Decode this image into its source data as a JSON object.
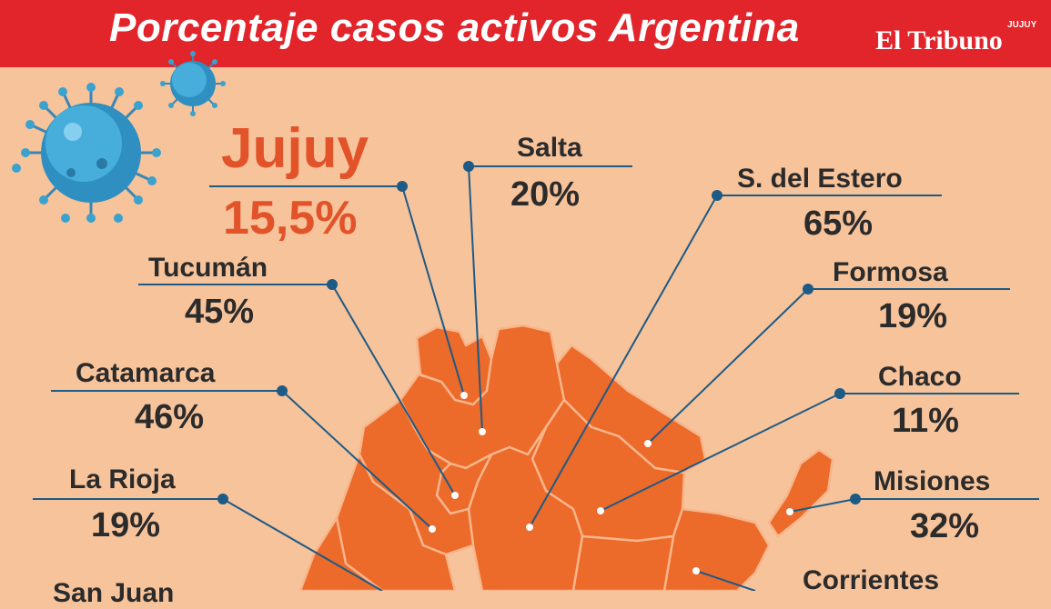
{
  "header": {
    "title": "Porcentaje casos activos Argentina",
    "logo": "El Tribuno",
    "logo_sub": "JUJUY"
  },
  "provinces": [
    {
      "key": "jujuy",
      "name": "Jujuy",
      "value": "15,5%"
    },
    {
      "key": "salta",
      "name": "Salta",
      "value": "20%"
    },
    {
      "key": "sde",
      "name": "S. del Estero",
      "value": "65%"
    },
    {
      "key": "tucuman",
      "name": "Tucumán",
      "value": "45%"
    },
    {
      "key": "formosa",
      "name": "Formosa",
      "value": "19%"
    },
    {
      "key": "catamarca",
      "name": "Catamarca",
      "value": "46%"
    },
    {
      "key": "chaco",
      "name": "Chaco",
      "value": "11%"
    },
    {
      "key": "larioja",
      "name": "La Rioja",
      "value": "19%"
    },
    {
      "key": "misiones",
      "name": "Misiones",
      "value": "32%"
    },
    {
      "key": "corrientes",
      "name": "Corrientes",
      "value": ""
    },
    {
      "key": "sanjuan",
      "name": "San Juan",
      "value": ""
    }
  ],
  "colors": {
    "background": "#f7c39b",
    "header": "#e2242b",
    "map": "#ec6a2a",
    "map_border": "#f8b58a",
    "leader": "#1d5a85",
    "highlight": "#e2532a",
    "virus": "#3aa2cf"
  }
}
